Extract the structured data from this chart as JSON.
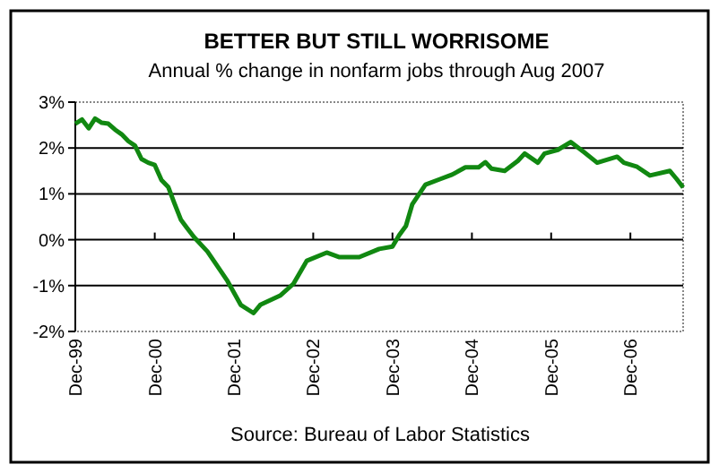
{
  "chart_data": {
    "type": "line",
    "title": "BETTER BUT STILL WORRISOME",
    "subtitle": "Annual % change in nonfarm jobs through Aug 2007",
    "annotations": [
      "Source:  Bureau of Labor Statistics"
    ],
    "x": [
      "1999-12",
      "2000-01",
      "2000-02",
      "2000-03",
      "2000-04",
      "2000-05",
      "2000-06",
      "2000-07",
      "2000-08",
      "2000-09",
      "2000-10",
      "2000-11",
      "2000-12",
      "2001-01",
      "2001-02",
      "2001-03",
      "2001-04",
      "2001-05",
      "2001-06",
      "2001-08",
      "2001-11",
      "2002-01",
      "2002-03",
      "2002-04",
      "2002-07",
      "2002-09",
      "2002-11",
      "2003-02",
      "2003-04",
      "2003-07",
      "2003-10",
      "2003-12",
      "2004-01",
      "2004-02",
      "2004-03",
      "2004-05",
      "2004-07",
      "2004-09",
      "2004-11",
      "2005-01",
      "2005-02",
      "2005-03",
      "2005-05",
      "2005-07",
      "2005-08",
      "2005-10",
      "2005-11",
      "2006-01",
      "2006-03",
      "2006-05",
      "2006-07",
      "2006-10",
      "2006-11",
      "2007-01",
      "2007-03",
      "2007-06",
      "2007-07",
      "2007-08"
    ],
    "series": [
      {
        "color": "#118811",
        "values": [
          2.53,
          2.62,
          2.43,
          2.64,
          2.55,
          2.53,
          2.4,
          2.3,
          2.15,
          2.05,
          1.76,
          1.68,
          1.63,
          1.3,
          1.15,
          0.8,
          0.43,
          0.24,
          0.05,
          -0.26,
          -0.9,
          -1.42,
          -1.6,
          -1.42,
          -1.22,
          -0.96,
          -0.46,
          -0.28,
          -0.38,
          -0.38,
          -0.2,
          -0.15,
          0.1,
          0.3,
          0.77,
          1.2,
          1.31,
          1.42,
          1.58,
          1.58,
          1.69,
          1.55,
          1.5,
          1.72,
          1.88,
          1.68,
          1.88,
          1.96,
          2.13,
          1.91,
          1.68,
          1.81,
          1.68,
          1.59,
          1.4,
          1.5,
          1.33,
          1.14
        ]
      }
    ],
    "xlim": [
      "1999-12",
      "2007-08"
    ],
    "xticks": [
      {
        "value": "1999-12",
        "label": "Dec-99"
      },
      {
        "value": "2000-12",
        "label": "Dec-00"
      },
      {
        "value": "2001-12",
        "label": "Dec-01"
      },
      {
        "value": "2002-12",
        "label": "Dec-02"
      },
      {
        "value": "2003-12",
        "label": "Dec-03"
      },
      {
        "value": "2004-12",
        "label": "Dec-04"
      },
      {
        "value": "2005-12",
        "label": "Dec-05"
      },
      {
        "value": "2006-12",
        "label": "Dec-06"
      }
    ],
    "ylim": [
      -2,
      3
    ],
    "yticks": [
      {
        "value": -2,
        "label": "-2%"
      },
      {
        "value": -1,
        "label": "-1%"
      },
      {
        "value": 0,
        "label": "0%"
      },
      {
        "value": 1,
        "label": "1%"
      },
      {
        "value": 2,
        "label": "2%"
      },
      {
        "value": 3,
        "label": "3%"
      }
    ],
    "grid": "y",
    "marker": "none",
    "line_style": "solid"
  }
}
